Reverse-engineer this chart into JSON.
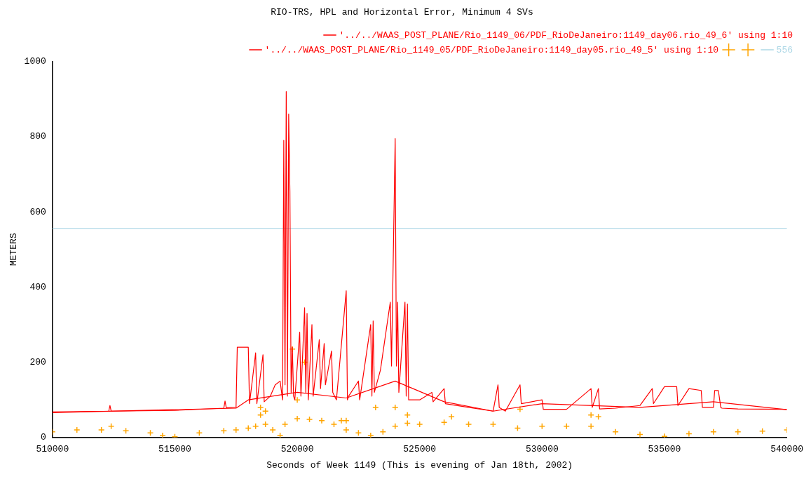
{
  "chart_data": {
    "type": "line",
    "title": "RIO-TRS, HPL and Horizontal Error, Minimum 4 SVs",
    "xlabel": "Seconds of Week 1149 (This is evening of Jan 18th, 2002)",
    "ylabel": "METERS",
    "xlim": [
      510000,
      540000
    ],
    "xticks": [
      510000,
      515000,
      520000,
      525000,
      530000,
      535000,
      540000
    ],
    "ylim": [
      0,
      1000
    ],
    "yticks": [
      0,
      200,
      400,
      600,
      800,
      1000
    ],
    "grid": false,
    "legend": "top right",
    "ref_lines": [
      {
        "axis": "y",
        "value": 556,
        "label": "556",
        "color": "#add8e6"
      }
    ],
    "series": [
      {
        "name": "'../../WAAS_POST_PLANE/Rio_1149_06/PDF_RioDeJaneiro:1149_day06.rio_49_6' using 1:10",
        "type": "line",
        "color": "#ff0000",
        "x": [
          510000,
          512300,
          512350,
          512400,
          515000,
          517000,
          517050,
          517100,
          517500,
          517550,
          517600,
          518000,
          518050,
          518300,
          518350,
          518600,
          518650,
          518900,
          519100,
          519300,
          519400,
          519450,
          519500,
          519550,
          519600,
          519650,
          519700,
          519750,
          519800,
          519850,
          519900,
          520100,
          520150,
          520300,
          520350,
          520400,
          520450,
          520600,
          520650,
          520900,
          520950,
          521100,
          521150,
          521400,
          521450,
          521600,
          522000,
          522050,
          522100,
          522500,
          522550,
          523000,
          523050,
          523100,
          523150,
          523400,
          523800,
          523850,
          524000,
          524050,
          524100,
          524150,
          524400,
          524450,
          524500,
          524550,
          525000,
          525500,
          525550,
          526000,
          526050,
          527000,
          528000,
          528200,
          528250,
          528500,
          529100,
          529150,
          530000,
          530050,
          531000,
          532000,
          532050,
          532300,
          532350,
          533000,
          534000,
          534500,
          534550,
          535000,
          535500,
          535550,
          536000,
          536500,
          536550,
          537000,
          537050,
          537200,
          537300,
          537350,
          538000,
          540000
        ],
        "values": [
          68,
          70,
          85,
          70,
          72,
          78,
          97,
          79,
          80,
          240,
          240,
          240,
          90,
          225,
          90,
          220,
          95,
          110,
          140,
          150,
          100,
          790,
          140,
          920,
          110,
          860,
          655,
          120,
          240,
          110,
          100,
          280,
          110,
          345,
          120,
          330,
          100,
          300,
          110,
          260,
          130,
          250,
          140,
          230,
          120,
          100,
          390,
          100,
          110,
          150,
          100,
          300,
          110,
          310,
          120,
          180,
          360,
          190,
          795,
          190,
          360,
          120,
          360,
          110,
          355,
          100,
          100,
          120,
          95,
          130,
          90,
          80,
          70,
          140,
          80,
          70,
          140,
          90,
          100,
          75,
          75,
          130,
          80,
          130,
          76,
          78,
          85,
          130,
          90,
          135,
          135,
          85,
          130,
          125,
          80,
          80,
          125,
          125,
          80,
          78,
          76,
          75
        ]
      },
      {
        "name": "'../../WAAS_POST_PLANE/Rio_1149_05/PDF_RioDeJaneiro:1149_day05.rio_49_5' using 1:10",
        "type": "line",
        "color": "#ff0000",
        "x": [
          510000,
          517500,
          518000,
          520000,
          522000,
          524000,
          526000,
          528000,
          530000,
          534000,
          537000,
          540000
        ],
        "values": [
          66,
          78,
          100,
          120,
          105,
          150,
          95,
          70,
          90,
          80,
          95,
          74
        ]
      },
      {
        "type": "scatter",
        "color": "#ffa500",
        "marker": "cross",
        "x": [
          510000,
          511000,
          512000,
          513000,
          514000,
          514500,
          515000,
          516000,
          517000,
          517500,
          518000,
          518300,
          518500,
          518700,
          519000,
          519500,
          520000,
          520500,
          521000,
          521500,
          522000,
          522500,
          523000,
          523500,
          524000,
          524500,
          525000,
          526000,
          527000,
          528000,
          529000,
          530000,
          531000,
          532000,
          533000,
          534000,
          535000,
          536000,
          537000,
          538000,
          539000,
          540000
        ],
        "values": [
          15,
          20,
          20,
          18,
          12,
          5,
          2,
          12,
          18,
          20,
          25,
          30,
          60,
          35,
          20,
          35,
          50,
          48,
          45,
          35,
          20,
          12,
          5,
          15,
          30,
          38,
          35,
          40,
          35,
          35,
          25,
          30,
          30,
          30,
          15,
          8,
          3,
          10,
          15,
          15,
          17,
          20
        ]
      },
      {
        "type": "scatter",
        "color": "#ffa500",
        "marker": "cross",
        "x": [
          512400,
          518500,
          518700,
          519800,
          520000,
          520300,
          521800,
          522000,
          523200,
          524000,
          529100,
          532000,
          532300,
          524500,
          526300,
          519300
        ],
        "values": [
          30,
          80,
          70,
          235,
          100,
          200,
          45,
          45,
          80,
          80,
          75,
          60,
          55,
          60,
          55,
          5
        ]
      }
    ]
  }
}
